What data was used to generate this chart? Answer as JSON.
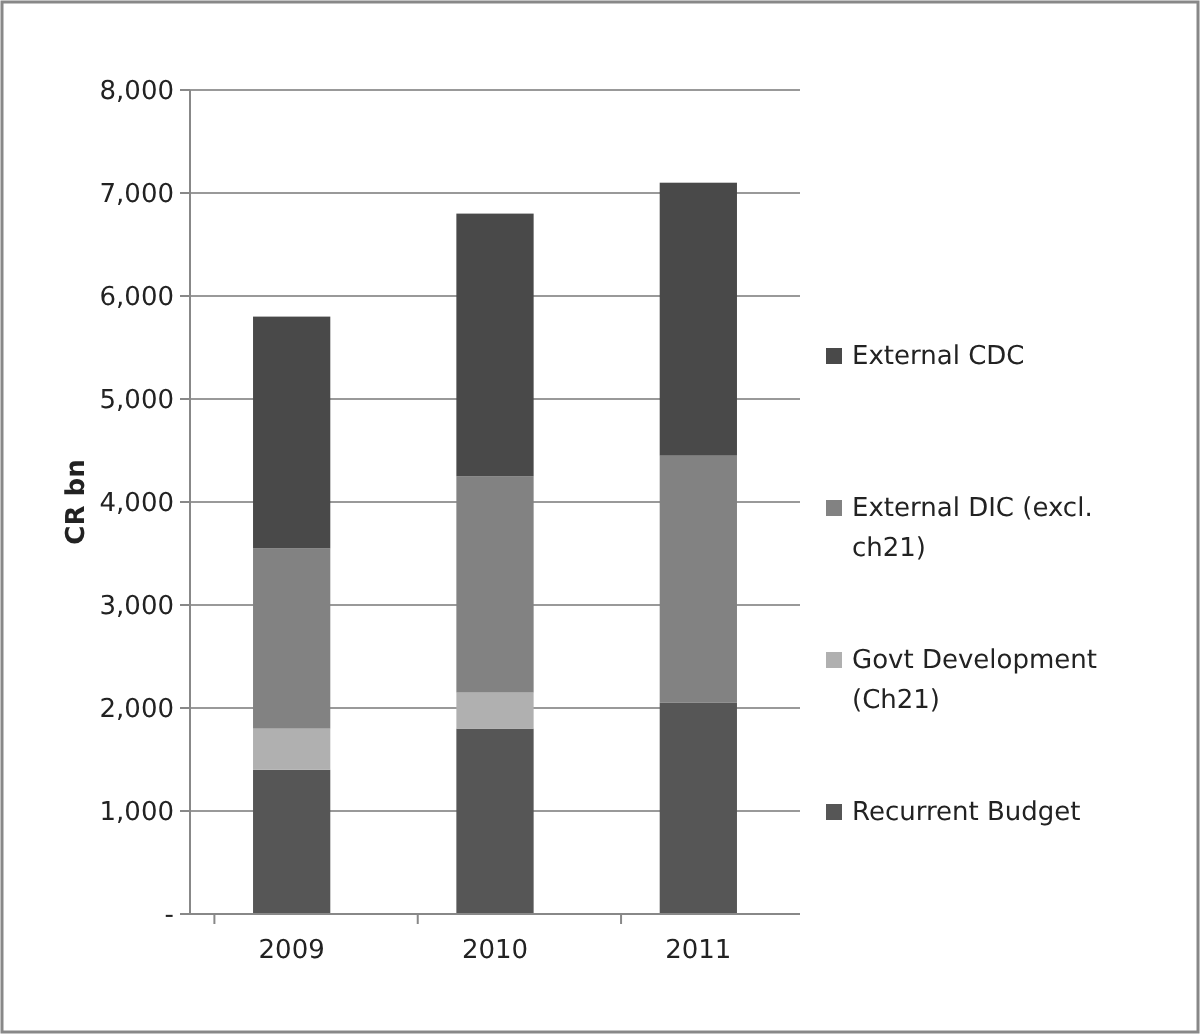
{
  "chart_data": {
    "type": "bar",
    "stacked": true,
    "ylabel": "CR bn",
    "categories": [
      "2009",
      "2010",
      "2011"
    ],
    "series": [
      {
        "name": "Recurrent Budget",
        "color": "#565656",
        "values": [
          1400,
          1800,
          2050
        ]
      },
      {
        "name": "Govt Development (Ch21)",
        "color": "#b0b0b0",
        "values": [
          400,
          350,
          0
        ]
      },
      {
        "name": "External DIC (excl. ch21)",
        "color": "#828282",
        "values": [
          1750,
          2100,
          2400
        ]
      },
      {
        "name": "External CDC",
        "color": "#494949",
        "values": [
          2250,
          2550,
          2650
        ]
      }
    ],
    "ylim": [
      0,
      8000
    ],
    "yticks": [
      {
        "value": 0,
        "label": "-"
      },
      {
        "value": 1000,
        "label": "1,000"
      },
      {
        "value": 2000,
        "label": "2,000"
      },
      {
        "value": 3000,
        "label": "3,000"
      },
      {
        "value": 4000,
        "label": "4,000"
      },
      {
        "value": 5000,
        "label": "5,000"
      },
      {
        "value": 6000,
        "label": "6,000"
      },
      {
        "value": 7000,
        "label": "7,000"
      },
      {
        "value": 8000,
        "label": "8,000"
      }
    ],
    "grid": "y",
    "legend": "right"
  }
}
